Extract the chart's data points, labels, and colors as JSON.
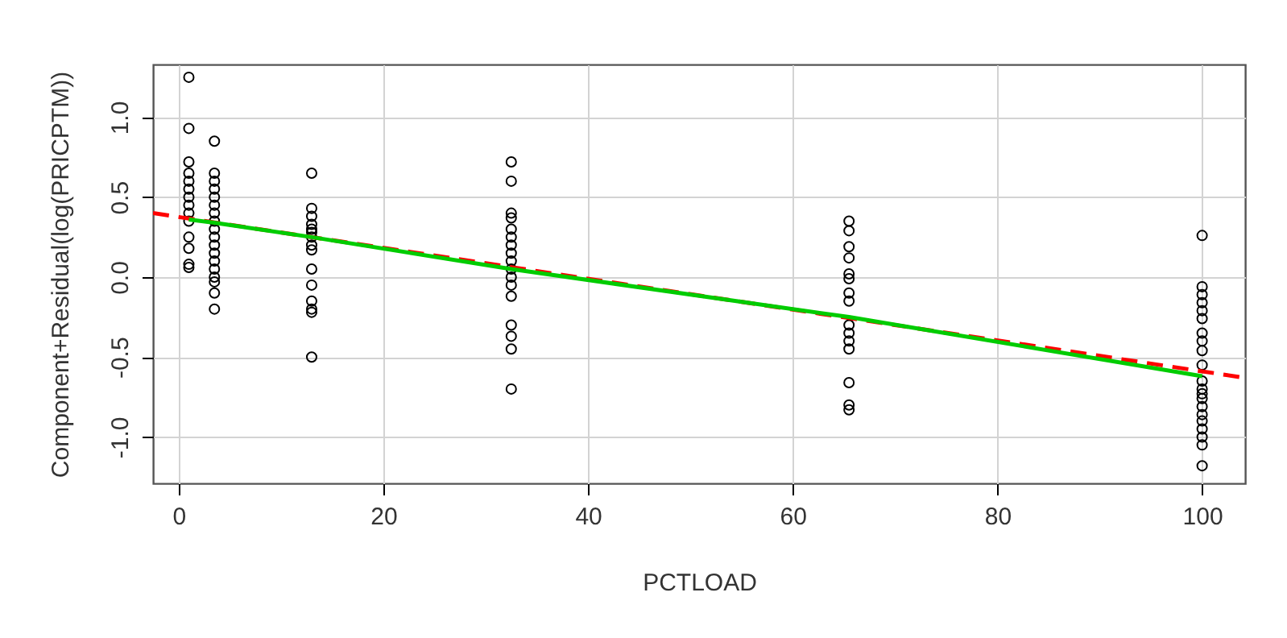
{
  "chart_data": {
    "type": "scatter",
    "xlabel": "PCTLOAD",
    "ylabel": "Component+Residual(log(PRICPTM))",
    "xlim": [
      -2.5,
      104.2
    ],
    "ylim": [
      -1.29,
      1.33
    ],
    "xticks": [
      0,
      20,
      40,
      60,
      80,
      100
    ],
    "yticks": [
      {
        "value": -1,
        "label": "-1.0"
      },
      {
        "value": -0.5,
        "label": "-0.5"
      },
      {
        "value": 0,
        "label": "0.0"
      },
      {
        "value": 0.5,
        "label": "0.5"
      },
      {
        "value": 1,
        "label": "1.0"
      }
    ],
    "grid": true,
    "series": [
      {
        "marker": "circle",
        "color": "#000000",
        "x": [
          1,
          1,
          1,
          1,
          1,
          1,
          1,
          1,
          1,
          1,
          1,
          1,
          1,
          1,
          3.5,
          3.5,
          3.5,
          3.5,
          3.5,
          3.5,
          3.5,
          3.5,
          3.5,
          3.5,
          3.5,
          3.5,
          3.5,
          3.5,
          3.5,
          3.5,
          3.5,
          3.5,
          13,
          13,
          13,
          13,
          13,
          13,
          13,
          13,
          13,
          13,
          13,
          13,
          13,
          13,
          13,
          32.5,
          32.5,
          32.5,
          32.5,
          32.5,
          32.5,
          32.5,
          32.5,
          32.5,
          32.5,
          32.5,
          32.5,
          32.5,
          32.5,
          32.5,
          32.5,
          32.5,
          65.5,
          65.5,
          65.5,
          65.5,
          65.5,
          65.5,
          65.5,
          65.5,
          65.5,
          65.5,
          65.5,
          65.5,
          65.5,
          65.5,
          65.5,
          100,
          100,
          100,
          100,
          100,
          100,
          100,
          100,
          100,
          100,
          100,
          100,
          100,
          100,
          100,
          100,
          100,
          100,
          100,
          100,
          100
        ],
        "values": [
          1.25,
          0.93,
          0.72,
          0.65,
          0.6,
          0.55,
          0.5,
          0.45,
          0.4,
          0.35,
          0.25,
          0.18,
          0.08,
          0.06,
          0.85,
          0.65,
          0.6,
          0.55,
          0.5,
          0.45,
          0.4,
          0.35,
          0.3,
          0.25,
          0.2,
          0.15,
          0.1,
          0.05,
          0.0,
          -0.03,
          -0.1,
          -0.2,
          0.65,
          0.43,
          0.38,
          0.33,
          0.3,
          0.28,
          0.25,
          0.2,
          0.17,
          0.05,
          -0.05,
          -0.15,
          -0.2,
          -0.22,
          -0.5,
          0.72,
          0.6,
          0.4,
          0.37,
          0.3,
          0.25,
          0.2,
          0.15,
          0.1,
          0.05,
          0.0,
          -0.05,
          -0.12,
          -0.3,
          -0.37,
          -0.45,
          -0.7,
          0.35,
          0.29,
          0.19,
          0.12,
          0.02,
          -0.01,
          -0.1,
          -0.15,
          -0.3,
          -0.35,
          -0.4,
          -0.45,
          -0.66,
          -0.8,
          -0.83,
          0.26,
          -0.06,
          -0.11,
          -0.16,
          -0.21,
          -0.26,
          -0.35,
          -0.4,
          -0.46,
          -0.55,
          -0.65,
          -0.7,
          -0.73,
          -0.76,
          -0.81,
          -0.86,
          -0.9,
          -0.95,
          -1.0,
          -1.05,
          -1.18
        ]
      },
      {
        "type": "line",
        "color": "#ff0000",
        "line_style": "dashed",
        "marker": "none",
        "x": [
          -2.5,
          104.2
        ],
        "values": [
          0.4,
          -0.63
        ]
      },
      {
        "type": "line",
        "color": "#00cc00",
        "line_style": "solid",
        "marker": "none",
        "x": [
          1,
          3.5,
          13,
          32.5,
          65.5,
          100
        ],
        "values": [
          0.36,
          0.34,
          0.25,
          0.05,
          -0.25,
          -0.62
        ]
      }
    ]
  }
}
